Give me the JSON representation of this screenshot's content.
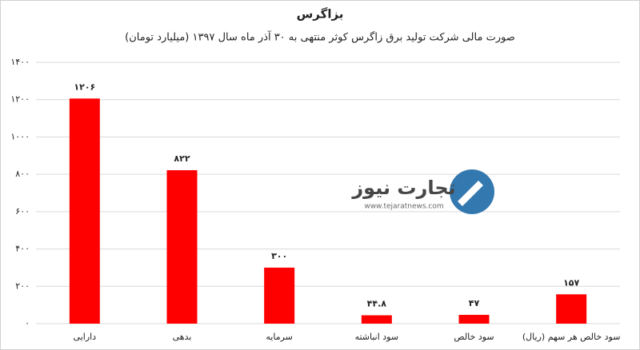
{
  "chart_data": {
    "type": "bar",
    "title": "بزاگرس",
    "subtitle": "صورت مالی شرکت تولید برق زاگرس کوثر منتهی به ۳۰ آذر ماه سال ۱۳۹۷ (میلیارد تومان)",
    "categories": [
      "دارایی",
      "بدهی",
      "سرمایه",
      "سود انباشته",
      "سود خالص",
      "سود خالص هر سهم (ریال)"
    ],
    "values": [
      1206,
      822,
      300,
      44.8,
      47,
      157
    ],
    "value_labels": [
      "۱۲۰۶",
      "۸۲۲",
      "۳۰۰",
      "۴۴.۸",
      "۴۷",
      "۱۵۷"
    ],
    "color": "#ff0000",
    "ylim": [
      0,
      1400
    ],
    "yticks": [
      {
        "value": 0,
        "label": "۰"
      },
      {
        "value": 200,
        "label": "۲۰۰"
      },
      {
        "value": 400,
        "label": "۴۰۰"
      },
      {
        "value": 600,
        "label": "۶۰۰"
      },
      {
        "value": 800,
        "label": "۸۰۰"
      },
      {
        "value": 1000,
        "label": "۱۰۰۰"
      },
      {
        "value": 1200,
        "label": "۱۲۰۰"
      },
      {
        "value": 1400,
        "label": "۱۴۰۰"
      }
    ],
    "grid": true
  },
  "watermark": {
    "brand": "تجارت نیوز",
    "url": "www.tejaratnews.com"
  }
}
